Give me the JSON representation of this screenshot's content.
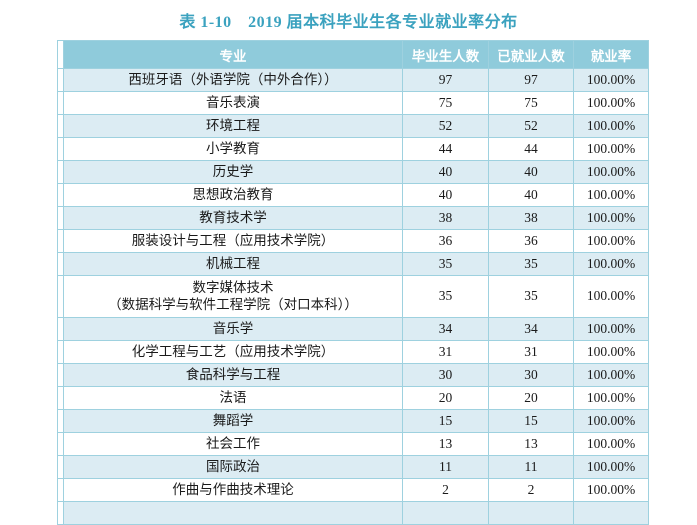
{
  "title": "表 1-10　2019 届本科毕业生各专业就业率分布",
  "colors": {
    "title_text": "#3BA2BF",
    "header_bg": "#8FCBDB",
    "header_text": "#FFFFFF",
    "row_alt_bg": "#DCECF3",
    "row_bg": "#FFFFFF",
    "border": "#9ED1DF",
    "body_text": "#1A1A1A"
  },
  "table": {
    "columns": [
      "专业",
      "毕业生人数",
      "已就业人数",
      "就业率"
    ],
    "rows": [
      {
        "major": "西班牙语（外语学院（中外合作））",
        "graduates": "97",
        "employed": "97",
        "rate": "100.00%"
      },
      {
        "major": "音乐表演",
        "graduates": "75",
        "employed": "75",
        "rate": "100.00%"
      },
      {
        "major": "环境工程",
        "graduates": "52",
        "employed": "52",
        "rate": "100.00%"
      },
      {
        "major": "小学教育",
        "graduates": "44",
        "employed": "44",
        "rate": "100.00%"
      },
      {
        "major": "历史学",
        "graduates": "40",
        "employed": "40",
        "rate": "100.00%"
      },
      {
        "major": "思想政治教育",
        "graduates": "40",
        "employed": "40",
        "rate": "100.00%"
      },
      {
        "major": "教育技术学",
        "graduates": "38",
        "employed": "38",
        "rate": "100.00%"
      },
      {
        "major": "服装设计与工程（应用技术学院）",
        "graduates": "36",
        "employed": "36",
        "rate": "100.00%"
      },
      {
        "major": "机械工程",
        "graduates": "35",
        "employed": "35",
        "rate": "100.00%"
      },
      {
        "major": "数字媒体技术\n（数据科学与软件工程学院（对口本科））",
        "graduates": "35",
        "employed": "35",
        "rate": "100.00%",
        "tall": true
      },
      {
        "major": "音乐学",
        "graduates": "34",
        "employed": "34",
        "rate": "100.00%"
      },
      {
        "major": "化学工程与工艺（应用技术学院）",
        "graduates": "31",
        "employed": "31",
        "rate": "100.00%"
      },
      {
        "major": "食品科学与工程",
        "graduates": "30",
        "employed": "30",
        "rate": "100.00%"
      },
      {
        "major": "法语",
        "graduates": "20",
        "employed": "20",
        "rate": "100.00%"
      },
      {
        "major": "舞蹈学",
        "graduates": "15",
        "employed": "15",
        "rate": "100.00%"
      },
      {
        "major": "社会工作",
        "graduates": "13",
        "employed": "13",
        "rate": "100.00%"
      },
      {
        "major": "国际政治",
        "graduates": "11",
        "employed": "11",
        "rate": "100.00%"
      },
      {
        "major": "作曲与作曲技术理论",
        "graduates": "2",
        "employed": "2",
        "rate": "100.00%"
      },
      {
        "major": "",
        "graduates": "",
        "employed": "",
        "rate": "",
        "partial": true
      }
    ]
  }
}
